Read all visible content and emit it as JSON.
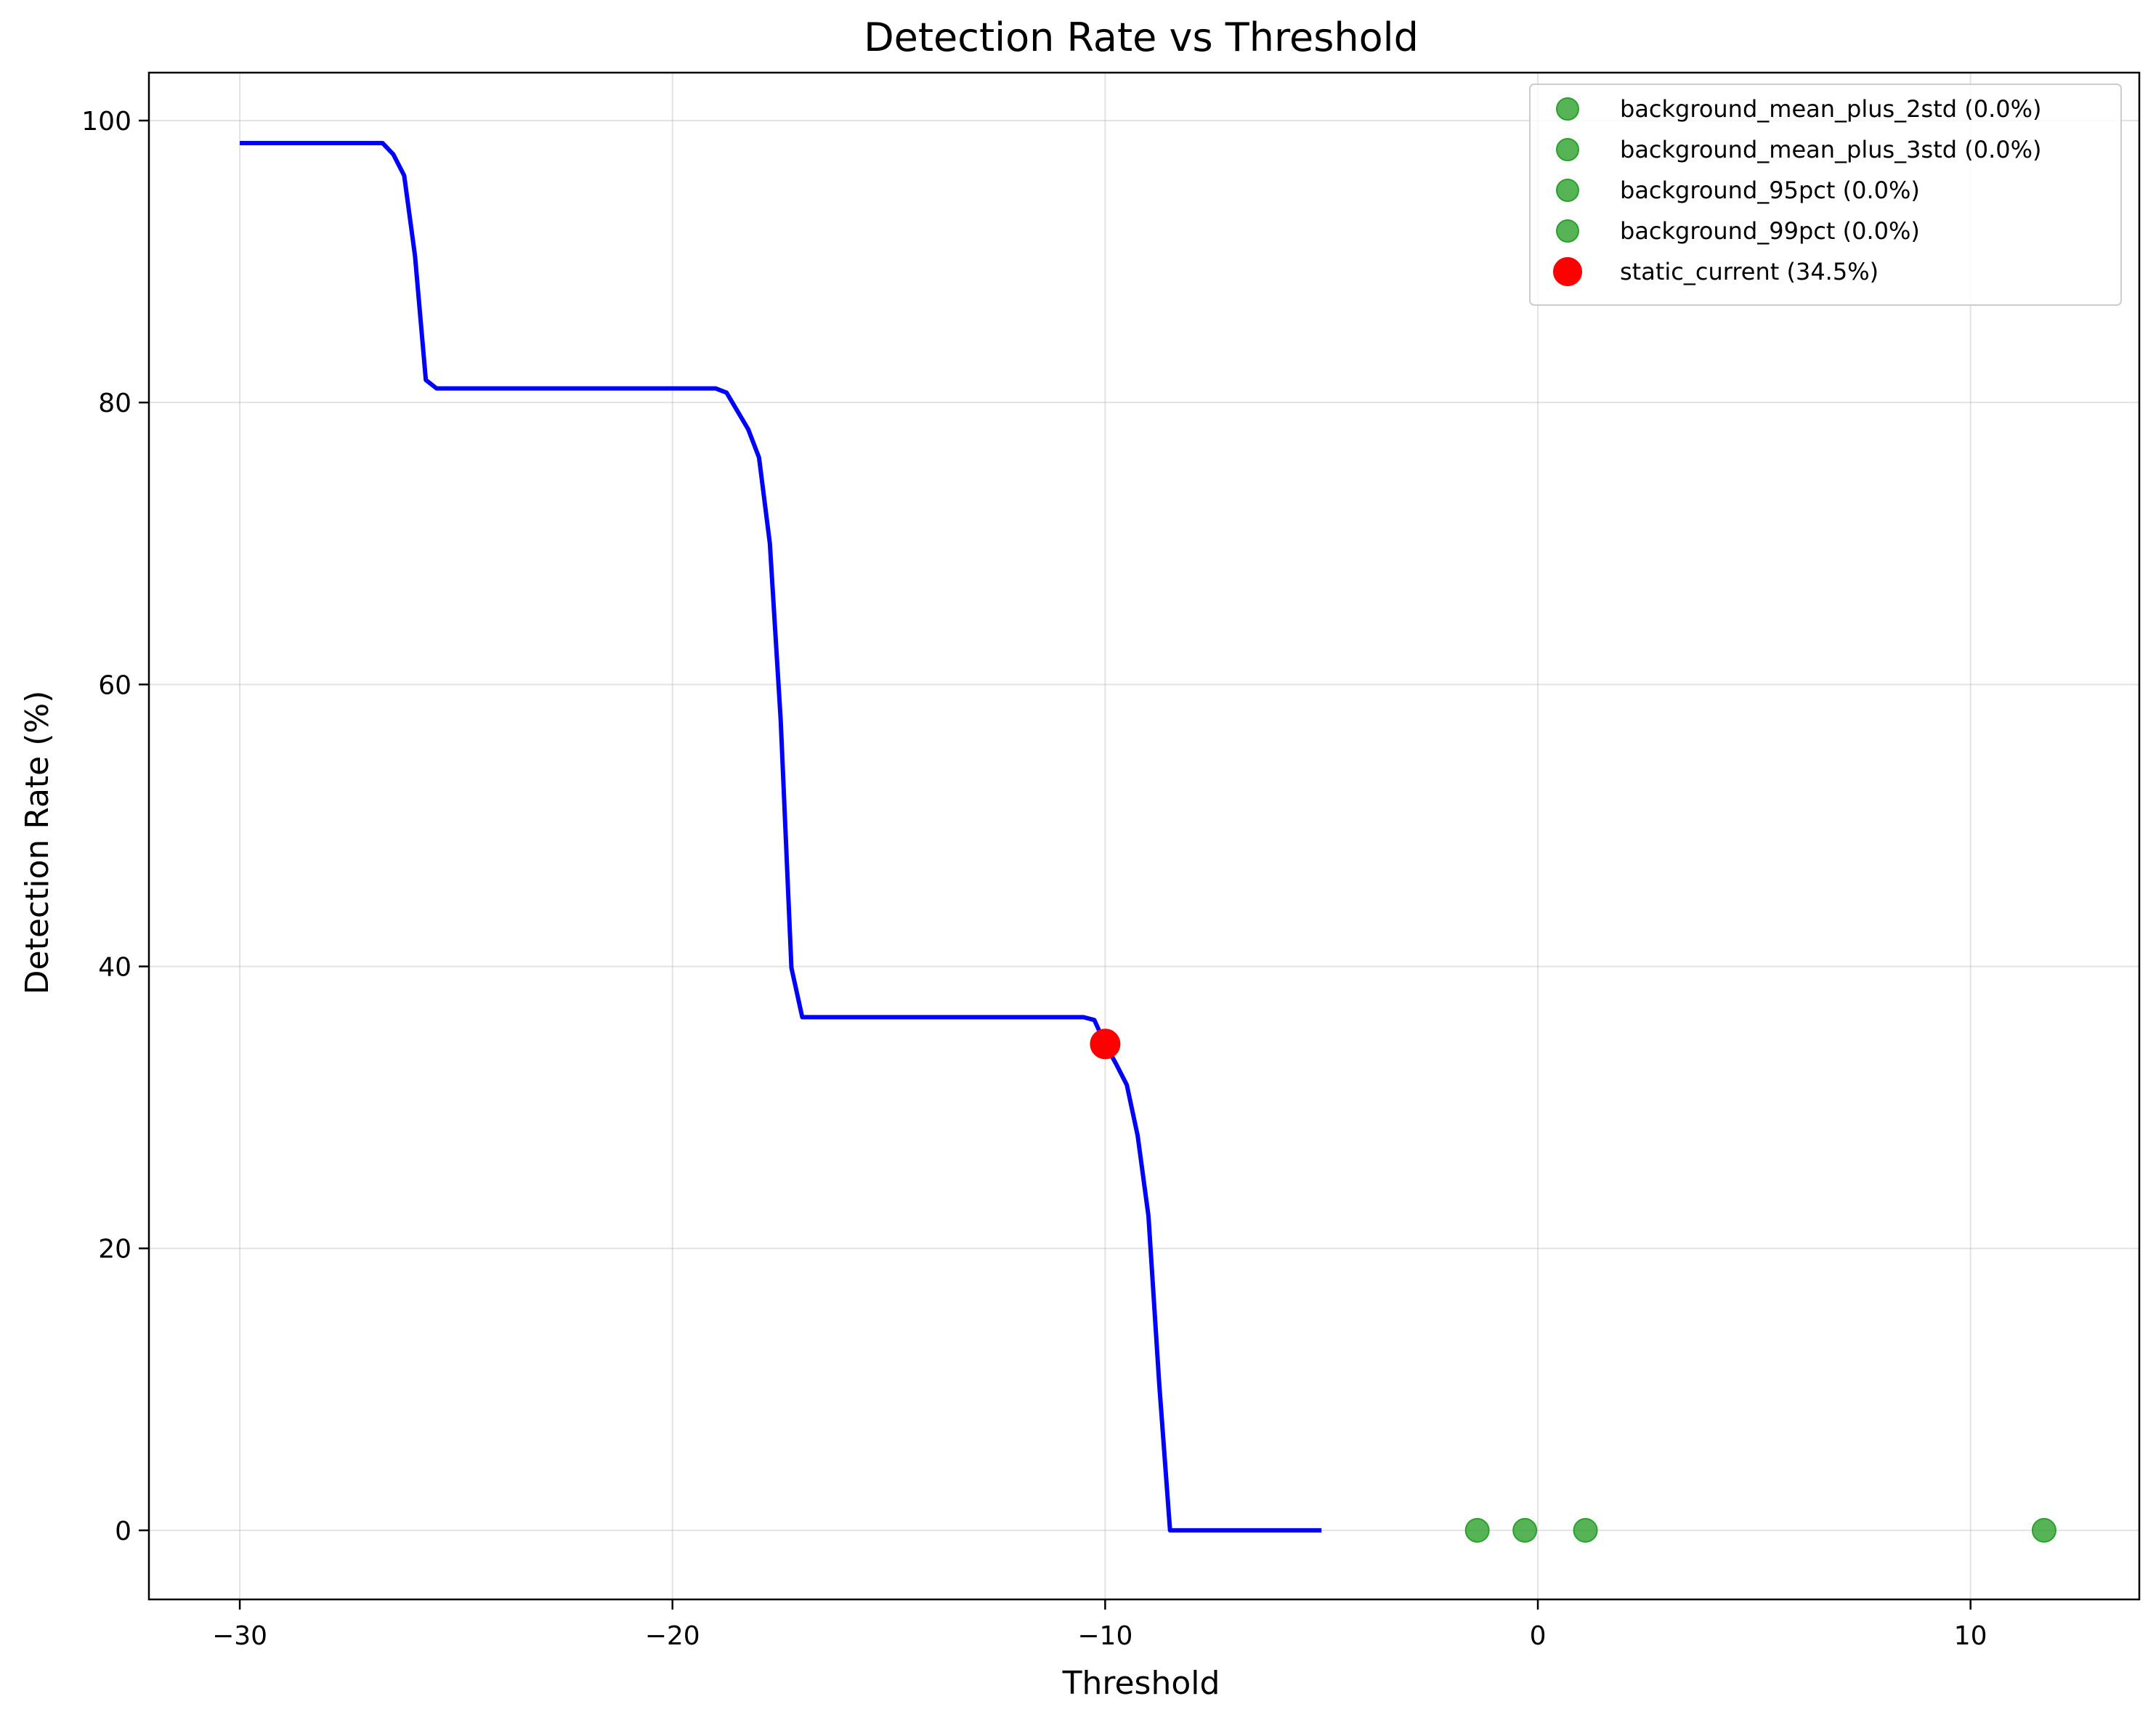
{
  "chart_data": {
    "type": "line",
    "title": "Detection Rate vs Threshold",
    "xlabel": "Threshold",
    "ylabel": "Detection Rate (%)",
    "xlim": [
      -32.1,
      13.9
    ],
    "ylim": [
      -4.9,
      103.4
    ],
    "xticks": [
      {
        "value": -30,
        "label": "−30"
      },
      {
        "value": -20,
        "label": "−20"
      },
      {
        "value": -10,
        "label": "−10"
      },
      {
        "value": 0,
        "label": "0"
      },
      {
        "value": 10,
        "label": "10"
      }
    ],
    "yticks": [
      {
        "value": 0,
        "label": "0"
      },
      {
        "value": 20,
        "label": "20"
      },
      {
        "value": 40,
        "label": "40"
      },
      {
        "value": 60,
        "label": "60"
      },
      {
        "value": 80,
        "label": "80"
      },
      {
        "value": 100,
        "label": "100"
      }
    ],
    "grid": true,
    "legend_position": "top-right",
    "line_series": {
      "color": "#0000ff",
      "x": [
        -30,
        -26.7,
        -26.45,
        -26.2,
        -25.95,
        -25.7,
        -25.45,
        -19.0,
        -18.75,
        -18.5,
        -18.25,
        -18.0,
        -17.75,
        -17.5,
        -17.25,
        -17.0,
        -16.75,
        -10.5,
        -10.25,
        -10.0,
        -9.75,
        -9.5,
        -9.25,
        -9.0,
        -8.75,
        -8.5,
        -5.0
      ],
      "y": [
        98.4,
        98.4,
        97.6,
        96.1,
        90.4,
        81.6,
        81.0,
        81.0,
        80.7,
        79.4,
        78.1,
        76.1,
        70.0,
        57.5,
        39.9,
        36.4,
        36.4,
        36.4,
        36.2,
        34.5,
        33.1,
        31.6,
        28.0,
        22.3,
        10.4,
        0.0,
        0.0
      ]
    },
    "points": [
      {
        "name": "background_mean_plus_2std (0.0%)",
        "x": -1.4,
        "y": 0,
        "color": "#2ca02c"
      },
      {
        "name": "background_mean_plus_3std (0.0%)",
        "x": -0.3,
        "y": 0,
        "color": "#2ca02c"
      },
      {
        "name": "background_95pct (0.0%)",
        "x": 1.1,
        "y": 0,
        "color": "#2ca02c"
      },
      {
        "name": "background_99pct (0.0%)",
        "x": 11.7,
        "y": 0,
        "color": "#2ca02c"
      },
      {
        "name": "static_current (34.5%)",
        "x": -10.0,
        "y": 34.5,
        "color": "#ff0000"
      }
    ],
    "legend": [
      {
        "label": "background_mean_plus_2std (0.0%)",
        "color": "#2ca02c"
      },
      {
        "label": "background_mean_plus_3std (0.0%)",
        "color": "#2ca02c"
      },
      {
        "label": "background_95pct (0.0%)",
        "color": "#2ca02c"
      },
      {
        "label": "background_99pct (0.0%)",
        "color": "#2ca02c"
      },
      {
        "label": "static_current (34.5%)",
        "color": "#ff0000"
      }
    ]
  }
}
